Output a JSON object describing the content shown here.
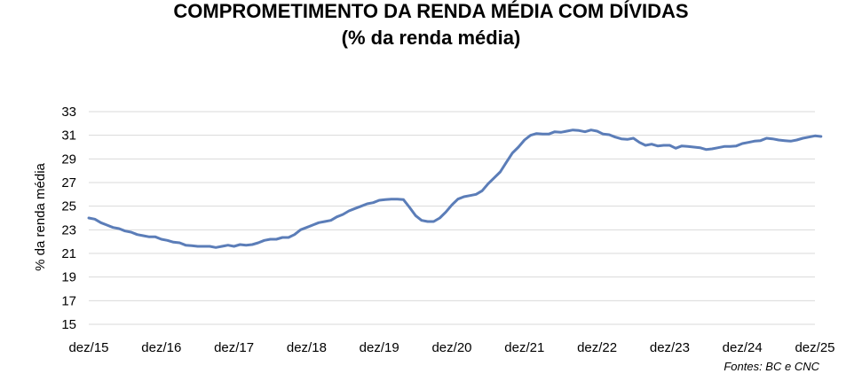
{
  "title": "COMPROMETIMENTO DA RENDA MÉDIA COM DÍVIDAS",
  "subtitle": "(% da renda média)",
  "source": "Fontes: BC e CNC",
  "chart_data": {
    "type": "line",
    "ylabel": "% da renda média",
    "xlabel": "",
    "ylim": [
      15,
      33
    ],
    "yticks": [
      15,
      17,
      19,
      21,
      23,
      25,
      27,
      29,
      31,
      33
    ],
    "xlim": [
      0,
      120
    ],
    "xtick_positions": [
      0,
      12,
      24,
      36,
      48,
      60,
      72,
      84,
      96,
      108,
      120
    ],
    "xtick_labels": [
      "dez/15",
      "dez/16",
      "dez/17",
      "dez/18",
      "dez/19",
      "dez/20",
      "dez/21",
      "dez/22",
      "dez/23",
      "dez/24",
      "dez/25"
    ],
    "grid": "horizontal",
    "series": [
      {
        "color": "#5B7DB8",
        "values": [
          24.0,
          23.9,
          23.6,
          23.4,
          23.2,
          23.1,
          22.9,
          22.8,
          22.6,
          22.5,
          22.4,
          22.4,
          22.2,
          22.1,
          21.95,
          21.9,
          21.7,
          21.65,
          21.6,
          21.6,
          21.6,
          21.5,
          21.6,
          21.7,
          21.6,
          21.75,
          21.7,
          21.75,
          21.9,
          22.1,
          22.2,
          22.2,
          22.35,
          22.35,
          22.6,
          23.0,
          23.2,
          23.4,
          23.6,
          23.7,
          23.8,
          24.1,
          24.3,
          24.6,
          24.8,
          25.0,
          25.2,
          25.3,
          25.5,
          25.55,
          25.6,
          25.6,
          25.55,
          24.9,
          24.2,
          23.8,
          23.7,
          23.7,
          24.0,
          24.5,
          25.1,
          25.6,
          25.8,
          25.9,
          26.0,
          26.3,
          26.9,
          27.4,
          27.9,
          28.7,
          29.5,
          30.0,
          30.6,
          31.0,
          31.15,
          31.1,
          31.1,
          31.3,
          31.25,
          31.35,
          31.45,
          31.4,
          31.3,
          31.45,
          31.35,
          31.1,
          31.05,
          30.85,
          30.7,
          30.65,
          30.75,
          30.4,
          30.15,
          30.25,
          30.1,
          30.15,
          30.15,
          29.9,
          30.1,
          30.05,
          30.0,
          29.95,
          29.8,
          29.85,
          29.95,
          30.05,
          30.05,
          30.1,
          30.3,
          30.4,
          30.5,
          30.55,
          30.75,
          30.7,
          30.6,
          30.55,
          30.5,
          30.6,
          30.75,
          30.85,
          30.95,
          30.9
        ]
      }
    ]
  }
}
